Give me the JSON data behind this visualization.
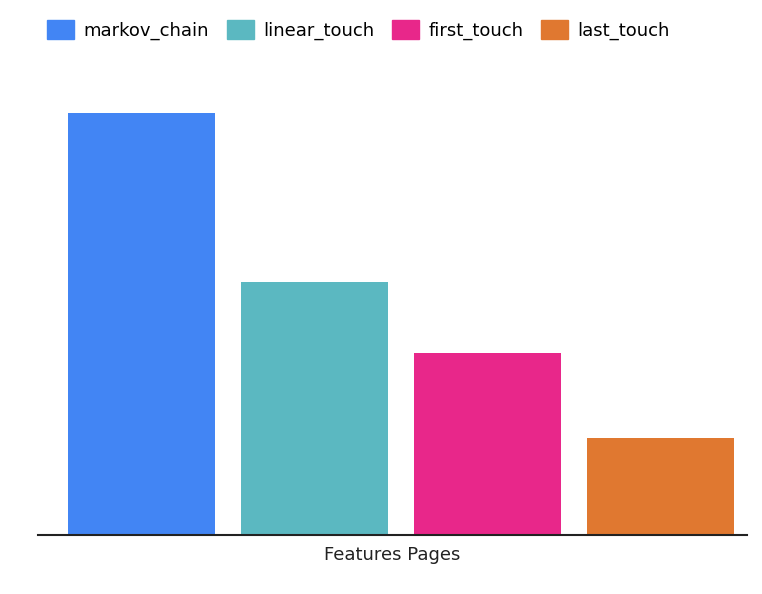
{
  "categories": [
    "markov_chain",
    "linear_touch",
    "first_touch",
    "last_touch"
  ],
  "values": [
    100,
    60,
    43,
    23
  ],
  "colors": [
    "#4285F4",
    "#5BB8C1",
    "#E8278A",
    "#E07830"
  ],
  "xlabel": "Features Pages",
  "xlabel_fontsize": 13,
  "legend_fontsize": 13,
  "background_color": "#ffffff",
  "grid_color": "#d8d8d8",
  "bar_width": 0.85,
  "ylim": [
    0,
    110
  ],
  "figsize": [
    7.62,
    5.94
  ],
  "dpi": 100
}
